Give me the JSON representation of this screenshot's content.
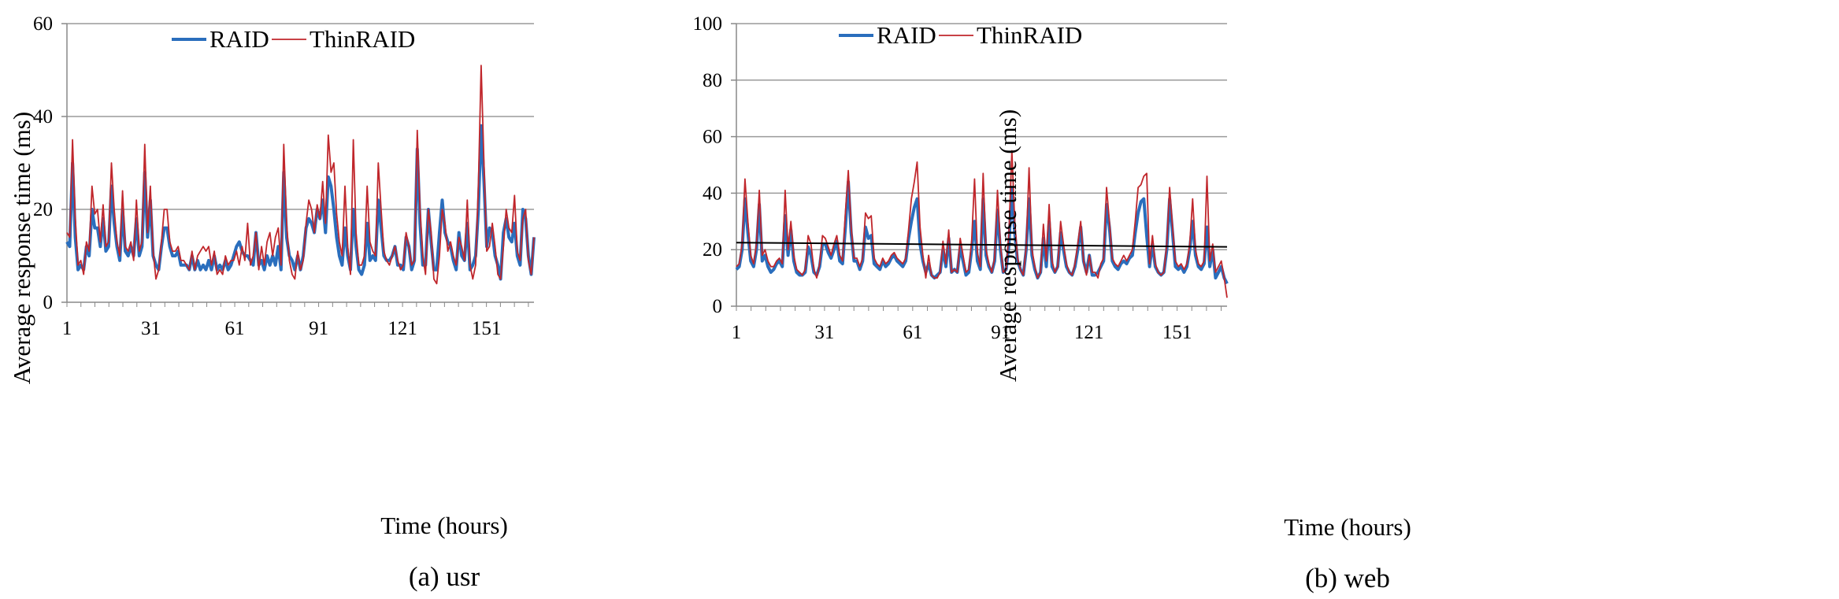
{
  "colors": {
    "raid": "#2a6ebd",
    "thinraid": "#c0262b",
    "grid": "#9a9a9a",
    "trend": "#000000"
  },
  "chart_data": [
    {
      "type": "line",
      "caption": "(a)  usr",
      "xlabel": "Time (hours)",
      "ylabel": "Average response time (ms)",
      "ylim": [
        0,
        60
      ],
      "yticks": [
        0,
        20,
        40,
        60
      ],
      "xlim": [
        1,
        168
      ],
      "xticks": [
        1,
        31,
        61,
        91,
        121,
        151
      ],
      "grid": "horizontal",
      "legend": "top-center",
      "series": [
        {
          "name": "RAID",
          "values": [
            13,
            12,
            30,
            14,
            7,
            8,
            7,
            12,
            10,
            20,
            16,
            16,
            12,
            18,
            11,
            12,
            25,
            17,
            12,
            9,
            20,
            11,
            10,
            12,
            10,
            18,
            10,
            12,
            28,
            14,
            22,
            10,
            8,
            7,
            12,
            16,
            16,
            12,
            10,
            10,
            11,
            8,
            8,
            8,
            7,
            10,
            7,
            9,
            7,
            8,
            7,
            9,
            7,
            10,
            7,
            8,
            7,
            9,
            7,
            8,
            10,
            12,
            13,
            11,
            10,
            10,
            9,
            8,
            15,
            8,
            9,
            7,
            10,
            8,
            10,
            8,
            12,
            7,
            28,
            14,
            10,
            9,
            7,
            10,
            7,
            10,
            16,
            18,
            17,
            15,
            20,
            18,
            22,
            15,
            27,
            25,
            20,
            14,
            10,
            8,
            16,
            10,
            7,
            20,
            12,
            7,
            6,
            8,
            17,
            9,
            10,
            9,
            22,
            16,
            10,
            9,
            9,
            10,
            12,
            8,
            8,
            7,
            14,
            12,
            7,
            9,
            33,
            17,
            8,
            8,
            20,
            13,
            7,
            7,
            15,
            22,
            15,
            13,
            12,
            9,
            7,
            15,
            10,
            9,
            17,
            7,
            8,
            10,
            20,
            38,
            26,
            12,
            16,
            15,
            10,
            8,
            5,
            15,
            18,
            14,
            13,
            17,
            10,
            8,
            20,
            18,
            10,
            6,
            14
          ]
        },
        {
          "name": "ThinRAID",
          "values": [
            15,
            14,
            35,
            18,
            8,
            9,
            6,
            13,
            11,
            25,
            19,
            20,
            13,
            21,
            12,
            13,
            30,
            20,
            13,
            10,
            24,
            12,
            11,
            13,
            9,
            22,
            11,
            13,
            34,
            15,
            25,
            11,
            5,
            7,
            13,
            20,
            20,
            13,
            11,
            11,
            12,
            9,
            9,
            8,
            7,
            11,
            7,
            10,
            11,
            12,
            11,
            12,
            8,
            11,
            6,
            7,
            6,
            10,
            8,
            9,
            9,
            11,
            8,
            12,
            9,
            17,
            8,
            10,
            15,
            7,
            12,
            8,
            13,
            15,
            10,
            14,
            16,
            8,
            34,
            17,
            9,
            6,
            5,
            11,
            7,
            9,
            17,
            22,
            20,
            15,
            21,
            18,
            26,
            17,
            36,
            28,
            30,
            19,
            13,
            10,
            25,
            12,
            6,
            35,
            15,
            8,
            8,
            10,
            25,
            13,
            11,
            10,
            30,
            20,
            11,
            9,
            8,
            10,
            12,
            9,
            7,
            8,
            15,
            12,
            8,
            9,
            37,
            20,
            10,
            6,
            20,
            15,
            5,
            4,
            10,
            20,
            17,
            11,
            13,
            10,
            8,
            14,
            12,
            9,
            22,
            8,
            5,
            8,
            25,
            51,
            30,
            11,
            12,
            17,
            12,
            6,
            5,
            12,
            20,
            16,
            15,
            23,
            11,
            9,
            18,
            20,
            9,
            6,
            14
          ]
        }
      ]
    },
    {
      "type": "line",
      "caption": "(b)  web",
      "xlabel": "Time (hours)",
      "ylabel": "Average response time (ms)",
      "ylim": [
        0,
        100
      ],
      "yticks": [
        0,
        20,
        40,
        60,
        80,
        100
      ],
      "xlim": [
        1,
        168
      ],
      "xticks": [
        1,
        31,
        61,
        91,
        121,
        151
      ],
      "grid": "horizontal",
      "legend": "top-center",
      "trendline": {
        "start": 22.5,
        "end": 21
      },
      "series": [
        {
          "name": "RAID",
          "values": [
            13,
            14,
            20,
            38,
            26,
            16,
            14,
            20,
            36,
            16,
            18,
            14,
            12,
            13,
            15,
            16,
            14,
            32,
            18,
            27,
            16,
            12,
            11,
            11,
            12,
            21,
            18,
            12,
            11,
            14,
            22,
            22,
            19,
            17,
            20,
            23,
            16,
            15,
            28,
            44,
            26,
            16,
            16,
            13,
            16,
            28,
            24,
            25,
            15,
            14,
            13,
            16,
            14,
            15,
            17,
            18,
            16,
            15,
            14,
            16,
            24,
            30,
            35,
            38,
            22,
            16,
            12,
            15,
            11,
            10,
            11,
            12,
            20,
            14,
            24,
            12,
            13,
            12,
            21,
            16,
            11,
            12,
            20,
            30,
            16,
            13,
            38,
            18,
            14,
            12,
            16,
            34,
            20,
            12,
            13,
            22,
            42,
            26,
            16,
            13,
            11,
            20,
            38,
            18,
            13,
            10,
            12,
            24,
            14,
            30,
            14,
            12,
            14,
            26,
            20,
            14,
            12,
            11,
            14,
            20,
            28,
            16,
            12,
            18,
            11,
            11,
            12,
            14,
            16,
            36,
            28,
            16,
            14,
            13,
            15,
            16,
            15,
            17,
            18,
            26,
            33,
            37,
            38,
            25,
            14,
            22,
            14,
            12,
            11,
            12,
            20,
            38,
            26,
            14,
            13,
            14,
            12,
            14,
            20,
            30,
            18,
            14,
            13,
            15,
            28,
            14,
            20,
            10,
            12,
            14,
            10,
            8
          ]
        },
        {
          "name": "ThinRAID",
          "values": [
            14,
            15,
            22,
            45,
            30,
            18,
            15,
            22,
            41,
            18,
            20,
            16,
            14,
            14,
            16,
            17,
            15,
            41,
            20,
            30,
            18,
            13,
            12,
            11,
            13,
            25,
            22,
            13,
            10,
            15,
            25,
            24,
            21,
            18,
            22,
            25,
            18,
            16,
            33,
            48,
            28,
            17,
            17,
            14,
            17,
            33,
            31,
            32,
            17,
            15,
            14,
            17,
            15,
            16,
            18,
            19,
            17,
            16,
            15,
            17,
            27,
            38,
            44,
            51,
            28,
            18,
            10,
            18,
            11,
            10,
            10,
            12,
            23,
            15,
            27,
            12,
            13,
            12,
            24,
            18,
            12,
            13,
            23,
            45,
            19,
            14,
            47,
            20,
            15,
            12,
            17,
            41,
            22,
            12,
            13,
            26,
            55,
            30,
            17,
            13,
            11,
            21,
            49,
            20,
            14,
            10,
            12,
            29,
            16,
            36,
            16,
            12,
            14,
            30,
            22,
            15,
            12,
            11,
            15,
            22,
            30,
            16,
            11,
            18,
            12,
            12,
            10,
            15,
            17,
            42,
            30,
            17,
            15,
            14,
            16,
            18,
            16,
            18,
            20,
            30,
            42,
            43,
            46,
            47,
            15,
            25,
            15,
            12,
            11,
            12,
            22,
            42,
            28,
            16,
            14,
            15,
            13,
            15,
            22,
            38,
            20,
            15,
            14,
            16,
            46,
            16,
            22,
            12,
            14,
            16,
            10,
            3
          ]
        }
      ]
    }
  ]
}
